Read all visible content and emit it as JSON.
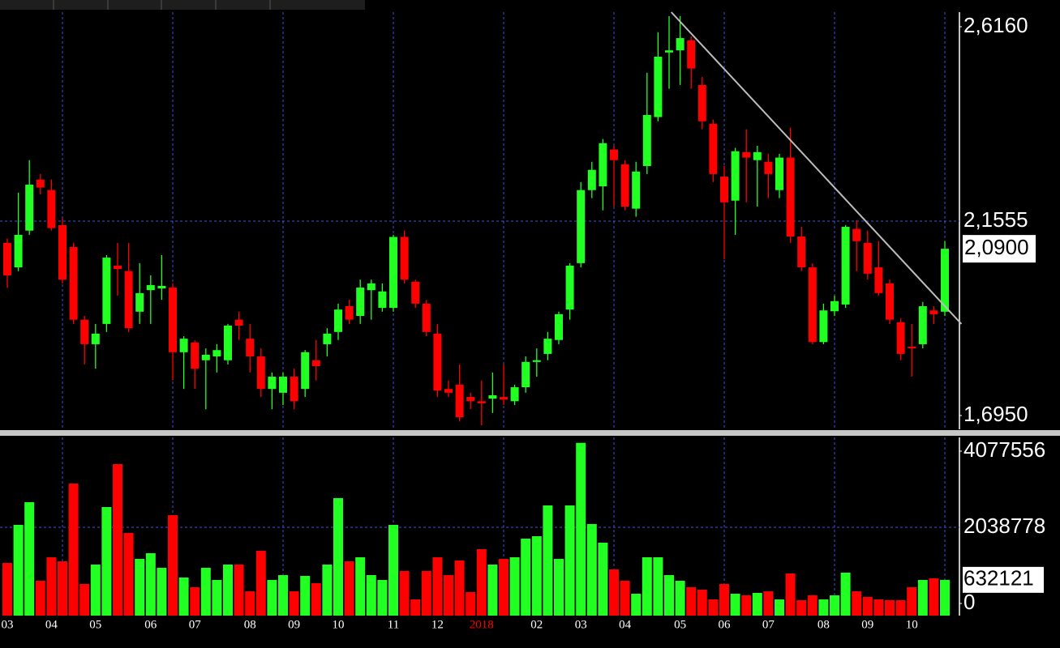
{
  "chart_data": [
    {
      "type": "candlestick",
      "open": [
        2.104,
        2.046,
        2.133,
        2.254,
        2.229,
        2.146,
        2.094,
        1.922,
        1.864,
        1.912,
        2.05,
        2.037,
        1.941,
        1.992,
        1.996,
        1.998,
        1.845,
        1.868,
        1.826,
        1.835,
        1.826,
        1.922,
        1.877,
        1.835,
        1.758,
        1.749,
        1.787,
        1.758,
        1.826,
        1.864,
        1.893,
        1.954,
        1.931,
        1.992,
        1.95,
        1.95,
        2.118,
        2.012,
        1.96,
        1.889,
        1.758,
        1.768,
        1.739,
        1.729,
        1.735,
        1.739,
        1.729,
        1.762,
        1.822,
        1.841,
        1.874,
        1.946,
        2.056,
        2.229,
        2.238,
        2.325,
        2.29,
        2.185,
        2.286,
        2.402,
        2.555,
        2.56,
        2.584,
        2.478,
        2.386,
        2.261,
        2.204,
        2.319,
        2.3,
        2.296,
        2.229,
        2.306,
        2.119,
        2.046,
        1.869,
        1.942,
        1.958,
        2.137,
        2.104,
        2.046,
        2.008,
        1.916,
        1.858,
        1.864,
        1.944,
        1.941
      ],
      "high": [
        2.114,
        2.223,
        2.3,
        2.267,
        2.254,
        2.162,
        2.104,
        1.931,
        1.912,
        2.075,
        2.104,
        2.104,
        2.056,
        2.027,
        2.075,
        2.008,
        1.883,
        1.873,
        1.854,
        1.864,
        1.912,
        1.941,
        1.912,
        1.854,
        1.797,
        1.797,
        1.806,
        1.85,
        1.874,
        1.902,
        1.96,
        1.969,
        2.017,
        2.017,
        2.008,
        2.123,
        2.133,
        2.017,
        1.969,
        1.912,
        1.778,
        1.816,
        1.749,
        1.778,
        1.797,
        1.816,
        1.768,
        1.835,
        1.854,
        1.893,
        1.941,
        2.056,
        2.248,
        2.296,
        2.35,
        2.334,
        2.3,
        2.296,
        2.507,
        2.603,
        2.641,
        2.641,
        2.593,
        2.497,
        2.396,
        2.286,
        2.329,
        2.373,
        2.334,
        2.315,
        2.315,
        2.377,
        2.142,
        2.056,
        1.96,
        1.979,
        2.146,
        2.158,
        2.133,
        2.108,
        2.017,
        1.925,
        1.912,
        1.964,
        1.954,
        2.108
      ],
      "low": [
        1.998,
        2.037,
        2.123,
        2.219,
        2.133,
        2.008,
        1.912,
        1.816,
        1.806,
        1.893,
        1.979,
        1.893,
        1.912,
        1.912,
        1.969,
        1.778,
        1.758,
        1.758,
        1.71,
        1.797,
        1.816,
        1.874,
        1.797,
        1.739,
        1.71,
        1.72,
        1.71,
        1.739,
        1.778,
        1.835,
        1.874,
        1.912,
        1.912,
        1.922,
        1.941,
        1.941,
        2.008,
        1.95,
        1.883,
        1.739,
        1.739,
        1.681,
        1.71,
        1.672,
        1.701,
        1.72,
        1.72,
        1.749,
        1.787,
        1.826,
        1.864,
        1.922,
        2.046,
        2.21,
        2.181,
        2.19,
        2.181,
        2.166,
        2.267,
        2.392,
        2.469,
        2.478,
        2.469,
        2.373,
        2.248,
        2.065,
        2.123,
        2.2,
        2.19,
        2.21,
        2.21,
        2.104,
        2.037,
        1.864,
        1.864,
        1.931,
        1.95,
        2.037,
        2.017,
        1.979,
        1.912,
        1.826,
        1.787,
        1.854,
        1.912,
        1.931
      ],
      "close": [
        2.027,
        2.123,
        2.242,
        2.235,
        2.139,
        2.017,
        1.922,
        1.864,
        1.889,
        2.069,
        2.042,
        1.902,
        1.985,
        2.004,
        2.002,
        1.845,
        1.877,
        1.806,
        1.839,
        1.85,
        1.908,
        1.908,
        1.835,
        1.758,
        1.787,
        1.787,
        1.729,
        1.845,
        1.812,
        1.889,
        1.946,
        1.922,
        1.998,
        2.008,
        1.989,
        2.118,
        2.017,
        1.96,
        1.893,
        1.754,
        1.749,
        1.691,
        1.729,
        1.724,
        1.743,
        1.733,
        1.762,
        1.822,
        1.826,
        1.877,
        1.935,
        2.05,
        2.229,
        2.277,
        2.34,
        2.3,
        2.19,
        2.273,
        2.407,
        2.545,
        2.56,
        2.589,
        2.517,
        2.392,
        2.267,
        2.2,
        2.321,
        2.306,
        2.319,
        2.267,
        2.306,
        2.119,
        2.046,
        1.869,
        1.944,
        1.966,
        2.142,
        2.108,
        2.031,
        1.985,
        1.922,
        1.841,
        1.854,
        1.954,
        1.935,
        2.09
      ],
      "up_color": "#22ff22",
      "down_color": "#ff0000",
      "ylim": [
        1.6624,
        2.6505
      ],
      "yticks": [
        {
          "value": 1.695,
          "label": "1,6950"
        },
        {
          "value": 2.1555,
          "label": "2,1555"
        },
        {
          "value": 2.616,
          "label": "2,6160"
        }
      ],
      "last_price": {
        "value": 2.09,
        "label": "2,0900"
      },
      "trendline": {
        "x": [
          60.2,
          86.5
        ],
        "y": [
          2.6505,
          1.912
        ]
      },
      "grid": true
    },
    {
      "type": "bar",
      "categories": [
        "03",
        null,
        null,
        null,
        "04",
        null,
        null,
        null,
        "05",
        null,
        null,
        null,
        null,
        "06",
        null,
        null,
        null,
        "07",
        null,
        null,
        null,
        null,
        "08",
        null,
        null,
        null,
        "09",
        null,
        null,
        null,
        "10",
        null,
        null,
        null,
        null,
        "11",
        null,
        null,
        null,
        "12",
        null,
        null,
        null,
        "2018",
        null,
        null,
        null,
        null,
        "02",
        null,
        null,
        null,
        "03",
        null,
        null,
        null,
        "04",
        null,
        null,
        null,
        null,
        "05",
        null,
        null,
        null,
        "06",
        null,
        null,
        null,
        "07",
        null,
        null,
        null,
        null,
        "08",
        null,
        null,
        null,
        "09",
        null,
        null,
        null,
        "10",
        null,
        null,
        null
      ],
      "values": [
        1084000,
        2104000,
        2711000,
        607000,
        1236000,
        1128000,
        3210000,
        521000,
        1041000,
        2581000,
        3731000,
        1887000,
        1193000,
        1345000,
        954000,
        2364000,
        694000,
        434000,
        954000,
        629000,
        1041000,
        1041000,
        325000,
        1410000,
        629000,
        759000,
        325000,
        737000,
        542000,
        1041000,
        2820000,
        1128000,
        1236000,
        759000,
        629000,
        2104000,
        868000,
        108000,
        868000,
        1236000,
        759000,
        1150000,
        304000,
        1453000,
        1041000,
        1193000,
        1236000,
        1735000,
        1800000,
        2624000,
        1193000,
        2624000,
        4300000,
        2126000,
        1627000,
        911000,
        607000,
        260000,
        1236000,
        1236000,
        759000,
        607000,
        434000,
        369000,
        108000,
        521000,
        260000,
        217000,
        282000,
        325000,
        108000,
        803000,
        87000,
        217000,
        108000,
        217000,
        824000,
        325000,
        174000,
        108000,
        87000,
        87000,
        434000,
        629000,
        672000,
        632121
      ],
      "ylim": [
        0,
        4446000
      ],
      "yticks": [
        0,
        2038778,
        4077556
      ],
      "last_value": 632121,
      "year_label_color": "#ff0000",
      "grid": true
    }
  ]
}
